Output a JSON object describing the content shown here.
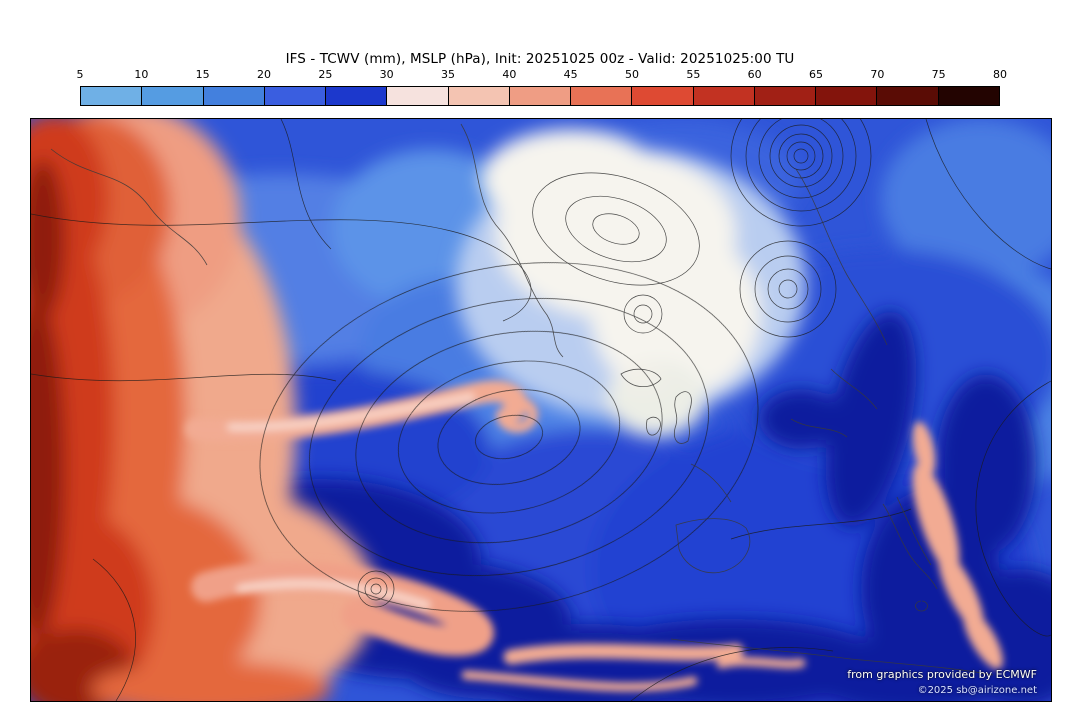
{
  "title": "IFS - TCWV (mm), MSLP (hPa), Init: 20251025 00z - Valid: 20251025:00 TU",
  "colorbar": {
    "unit": "mm",
    "ticks": [
      "5",
      "10",
      "15",
      "20",
      "25",
      "30",
      "35",
      "40",
      "45",
      "50",
      "55",
      "60",
      "65",
      "70",
      "75",
      "80"
    ],
    "colors": [
      "#6fb0e6",
      "#559ce2",
      "#4380de",
      "#3a5ee0",
      "#1c38cc",
      "#f6e2de",
      "#f4c4b2",
      "#ef9d84",
      "#e87256",
      "#de4a33",
      "#c23222",
      "#a12015",
      "#83140c",
      "#5a0c05",
      "#230401"
    ]
  },
  "credits": {
    "line1": "from graphics provided by ECMWF",
    "line2": "©2025 sb@airizone.net"
  },
  "chart_data": {
    "type": "heatmap",
    "title": "IFS - TCWV (mm), MSLP (hPa), Init: 20251025 00z - Valid: 20251025:00 TU",
    "model": "IFS",
    "fields": [
      "TCWV (mm)",
      "MSLP (hPa)"
    ],
    "init": "20251025 00z",
    "valid": "20251025:00 TU",
    "legend_position": "top",
    "colorbar_ticks": [
      5,
      10,
      15,
      20,
      25,
      30,
      35,
      40,
      45,
      50,
      55,
      60,
      65,
      70,
      75,
      80
    ],
    "colorbar_colors": [
      "#6fb0e6",
      "#559ce2",
      "#4380de",
      "#3a5ee0",
      "#1c38cc",
      "#f6e2de",
      "#f4c4b2",
      "#ef9d84",
      "#e87256",
      "#de4a33",
      "#c23222",
      "#a12015",
      "#83140c",
      "#5a0c05",
      "#230401"
    ]
  }
}
